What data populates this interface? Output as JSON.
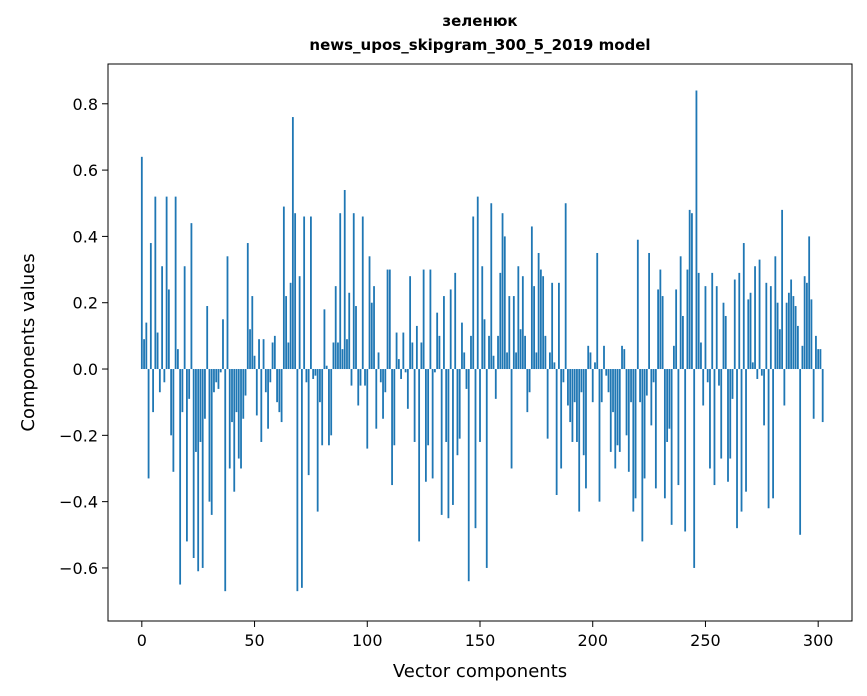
{
  "chart_data": {
    "type": "bar",
    "title": "зеленюк",
    "subtitle": "news_upos_skipgram_300_5_2019 model",
    "xlabel": "Vector components",
    "ylabel": "Components values",
    "xlim": [
      -15,
      315
    ],
    "ylim": [
      -0.76,
      0.92
    ],
    "xticks": [
      0,
      50,
      100,
      150,
      200,
      250,
      300
    ],
    "yticks": [
      -0.6,
      -0.4,
      -0.2,
      0.0,
      0.2,
      0.4,
      0.6,
      0.8
    ],
    "xtick_labels": [
      "0",
      "50",
      "100",
      "150",
      "200",
      "250",
      "300"
    ],
    "ytick_labels": [
      "−0.6",
      "−0.4",
      "−0.2",
      "0.0",
      "0.2",
      "0.4",
      "0.6",
      "0.8"
    ],
    "grid": false,
    "bar_color": "#1f77b4",
    "values": [
      0.64,
      0.09,
      0.14,
      -0.33,
      0.38,
      -0.13,
      0.52,
      0.11,
      -0.07,
      0.31,
      -0.04,
      0.52,
      0.24,
      -0.2,
      -0.31,
      0.52,
      0.06,
      -0.65,
      -0.13,
      0.31,
      -0.52,
      -0.09,
      0.44,
      -0.57,
      -0.25,
      -0.61,
      -0.22,
      -0.6,
      -0.15,
      0.19,
      -0.4,
      -0.44,
      -0.07,
      -0.04,
      -0.06,
      -0.01,
      0.15,
      -0.67,
      0.34,
      -0.3,
      -0.16,
      -0.37,
      -0.13,
      -0.27,
      -0.3,
      -0.15,
      -0.08,
      0.38,
      0.12,
      0.22,
      0.04,
      -0.14,
      0.09,
      -0.22,
      0.09,
      -0.07,
      -0.18,
      -0.04,
      0.08,
      0.1,
      -0.1,
      -0.13,
      -0.16,
      0.49,
      0.22,
      0.08,
      0.26,
      0.76,
      0.47,
      -0.67,
      0.28,
      -0.66,
      0.46,
      -0.04,
      -0.32,
      0.46,
      -0.03,
      -0.02,
      -0.43,
      -0.1,
      -0.23,
      0.18,
      0.01,
      -0.23,
      -0.2,
      0.08,
      0.25,
      0.08,
      0.47,
      0.06,
      0.54,
      0.09,
      0.23,
      -0.05,
      0.47,
      0.19,
      -0.11,
      -0.05,
      0.46,
      -0.05,
      -0.24,
      0.34,
      0.2,
      0.25,
      -0.18,
      0.05,
      -0.04,
      -0.15,
      -0.07,
      0.3,
      0.3,
      -0.35,
      -0.23,
      0.11,
      0.03,
      -0.03,
      0.11,
      -0.01,
      -0.12,
      0.28,
      0.08,
      -0.22,
      0.13,
      -0.52,
      0.08,
      0.3,
      -0.34,
      -0.23,
      0.3,
      -0.33,
      -0.01,
      0.17,
      0.1,
      -0.44,
      0.22,
      -0.22,
      -0.45,
      0.24,
      -0.41,
      0.29,
      -0.26,
      -0.21,
      0.14,
      0.05,
      -0.06,
      -0.64,
      0.1,
      0.46,
      -0.48,
      0.52,
      -0.22,
      0.31,
      0.15,
      -0.6,
      0.1,
      0.5,
      0.04,
      -0.09,
      0.1,
      0.29,
      0.47,
      0.4,
      0.05,
      0.22,
      -0.3,
      0.22,
      0.05,
      0.31,
      0.12,
      0.28,
      0.1,
      -0.13,
      -0.07,
      0.43,
      0.25,
      0.05,
      0.35,
      0.3,
      0.28,
      0.1,
      -0.21,
      0.05,
      0.26,
      0.02,
      -0.38,
      0.26,
      -0.3,
      -0.04,
      0.5,
      -0.11,
      -0.16,
      -0.22,
      -0.1,
      -0.22,
      -0.43,
      -0.07,
      -0.26,
      -0.36,
      0.07,
      0.05,
      -0.1,
      0.02,
      0.35,
      -0.4,
      -0.1,
      0.07,
      -0.02,
      -0.07,
      -0.25,
      -0.13,
      -0.3,
      -0.23,
      -0.25,
      0.07,
      0.06,
      -0.2,
      -0.31,
      -0.1,
      -0.43,
      -0.39,
      0.39,
      -0.1,
      -0.52,
      -0.33,
      -0.08,
      0.35,
      -0.17,
      -0.04,
      -0.36,
      0.24,
      0.3,
      0.22,
      -0.39,
      -0.22,
      -0.18,
      -0.47,
      0.07,
      0.24,
      -0.35,
      0.34,
      0.16,
      -0.49,
      0.3,
      0.48,
      0.47,
      -0.6,
      0.84,
      0.29,
      0.08,
      -0.11,
      0.25,
      -0.04,
      -0.3,
      0.29,
      -0.35,
      0.25,
      -0.05,
      -0.27,
      0.2,
      0.16,
      -0.34,
      -0.27,
      -0.09,
      0.27,
      -0.48,
      0.29,
      -0.43,
      0.38,
      -0.37,
      0.21,
      0.23,
      0.02,
      0.31,
      -0.03,
      0.33,
      -0.02,
      -0.17,
      0.26,
      -0.42,
      0.25,
      -0.39,
      0.34,
      0.2,
      0.12,
      0.48,
      -0.11,
      0.2,
      0.23,
      0.27,
      0.22,
      0.19,
      0.13,
      -0.5,
      0.07,
      0.28,
      0.26,
      0.4,
      0.21,
      -0.15,
      0.1,
      0.06,
      0.06,
      -0.16
    ]
  }
}
